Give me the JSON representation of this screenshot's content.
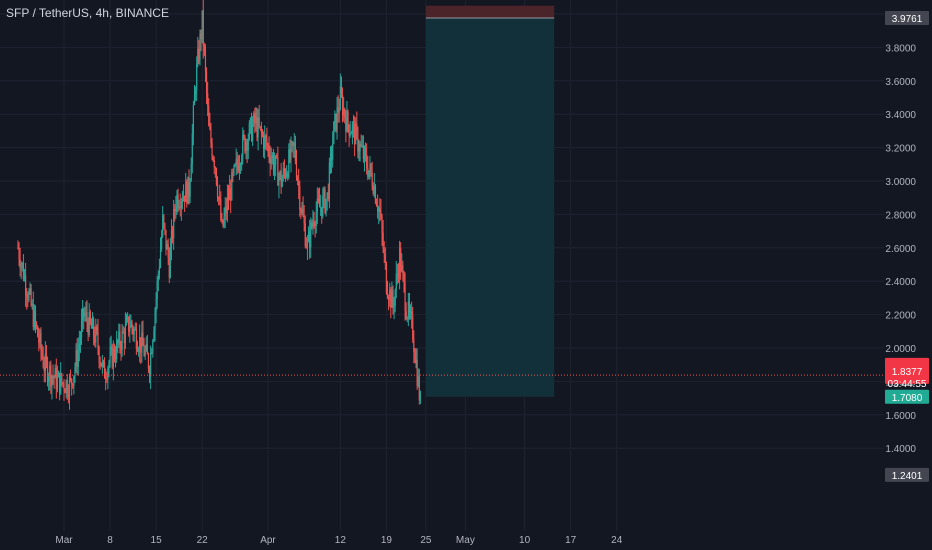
{
  "title": "SFP / TetherUS, 4h, BINANCE",
  "colors": {
    "background": "#131722",
    "grid": "#1f2330",
    "up": "#26a69a",
    "down": "#ef5350",
    "text": "#b2b5be",
    "stop_zone": "#4a2428",
    "target_zone": "#12303a",
    "current_label": "#f23645",
    "target_label": "#22ab94",
    "level_label": "#434651"
  },
  "chart_data": {
    "type": "candlestick",
    "title": "SFP / TetherUS, 4h, BINANCE",
    "x_ticks": [
      {
        "label": "Mar",
        "day": 0
      },
      {
        "label": "8",
        "day": 7
      },
      {
        "label": "15",
        "day": 14
      },
      {
        "label": "22",
        "day": 21
      },
      {
        "label": "Apr",
        "day": 31
      },
      {
        "label": "12",
        "day": 42
      },
      {
        "label": "19",
        "day": 49
      },
      {
        "label": "25",
        "day": 55
      },
      {
        "label": "May",
        "day": 61
      },
      {
        "label": "10",
        "day": 70
      },
      {
        "label": "17",
        "day": 77
      },
      {
        "label": "24",
        "day": 84
      }
    ],
    "y_ticks": [
      "4",
      "3.8000",
      "3.6000",
      "3.4000",
      "3.2000",
      "3.0000",
      "2.8000",
      "2.6000",
      "2.4000",
      "2.2000",
      "2.0000",
      "1.8000",
      "1.6000",
      "1.4000"
    ],
    "y_unit": "USDT",
    "y_range": [
      1.2,
      4.05
    ],
    "x_range_days": [
      -7,
      89
    ],
    "price_path": [
      [
        -7,
        2.6
      ],
      [
        -5,
        2.25
      ],
      [
        -3,
        1.9
      ],
      [
        -1,
        1.8
      ],
      [
        1,
        1.78
      ],
      [
        2,
        1.95
      ],
      [
        3,
        2.2
      ],
      [
        5,
        2.05
      ],
      [
        6,
        1.85
      ],
      [
        8,
        2.0
      ],
      [
        10,
        2.15
      ],
      [
        12,
        2.0
      ],
      [
        13,
        1.9
      ],
      [
        14,
        2.3
      ],
      [
        15,
        2.75
      ],
      [
        16,
        2.5
      ],
      [
        17,
        2.9
      ],
      [
        19,
        2.95
      ],
      [
        20,
        3.6
      ],
      [
        21,
        3.95
      ],
      [
        22,
        3.3
      ],
      [
        23,
        3.1
      ],
      [
        24,
        2.7
      ],
      [
        25,
        2.9
      ],
      [
        27,
        3.2
      ],
      [
        29,
        3.35
      ],
      [
        31,
        3.2
      ],
      [
        33,
        3.0
      ],
      [
        35,
        3.2
      ],
      [
        36,
        2.85
      ],
      [
        37,
        2.6
      ],
      [
        38,
        2.8
      ],
      [
        40,
        2.9
      ],
      [
        41,
        3.3
      ],
      [
        42,
        3.5
      ],
      [
        43,
        3.35
      ],
      [
        44,
        3.3
      ],
      [
        45,
        3.2
      ],
      [
        47,
        3.0
      ],
      [
        48,
        2.8
      ],
      [
        49,
        2.4
      ],
      [
        50,
        2.25
      ],
      [
        51,
        2.55
      ],
      [
        52,
        2.25
      ],
      [
        53,
        2.1
      ],
      [
        54.2,
        1.65
      ]
    ],
    "current_price": "1.8377",
    "countdown": "03:44:55",
    "position_tool": {
      "entry": 3.9761,
      "entry_label": "3.9761",
      "target": 1.708,
      "target_label": "1.7080",
      "stop_top": 4.05,
      "start_day": 55,
      "end_day": 74.5
    },
    "level_label": "1.2401",
    "level_price": 1.2401,
    "current_price_value": 1.8377
  }
}
